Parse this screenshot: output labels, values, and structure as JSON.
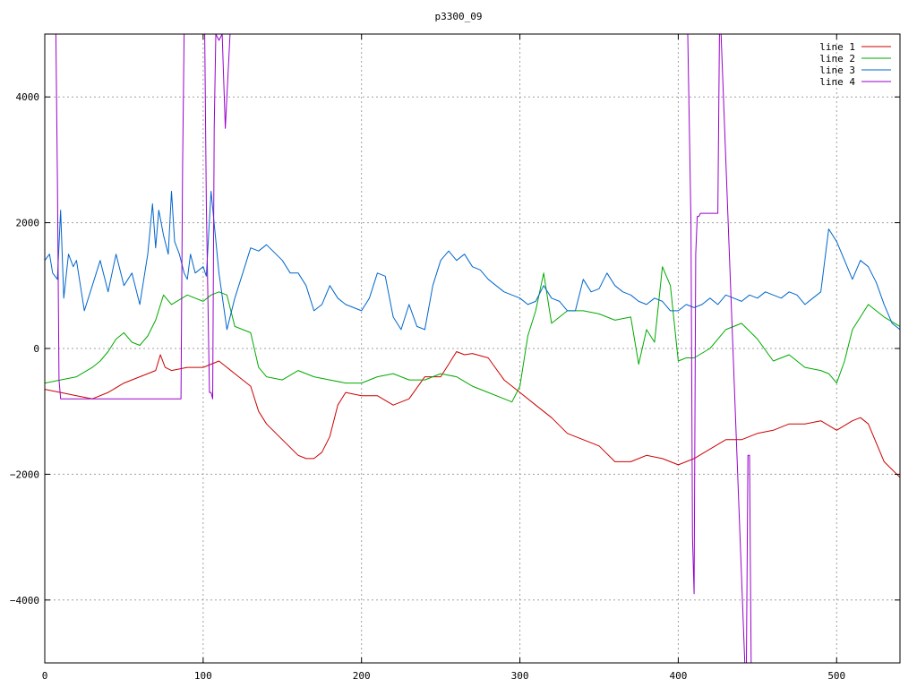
{
  "chart_data": {
    "type": "line",
    "title": "p3300_09",
    "xlabel": "",
    "ylabel": "",
    "xlim": [
      0,
      540
    ],
    "ylim": [
      -5000,
      5000
    ],
    "x_ticks": [
      0,
      100,
      200,
      300,
      400,
      500
    ],
    "y_ticks": [
      -4000,
      -2000,
      0,
      2000,
      4000
    ],
    "x_tick_labels": [
      "0",
      "100",
      "200",
      "300",
      "400",
      "500"
    ],
    "y_tick_labels": [
      "−4000",
      "−2000",
      "0",
      "2000",
      "4000"
    ],
    "grid": true,
    "legend_position": "top-right",
    "series": [
      {
        "name": "line 1",
        "color": "#cc0000",
        "x": [
          0,
          10,
          20,
          30,
          40,
          50,
          60,
          70,
          73,
          76,
          80,
          90,
          100,
          110,
          120,
          130,
          135,
          140,
          150,
          160,
          165,
          170,
          175,
          180,
          185,
          190,
          200,
          210,
          220,
          230,
          240,
          250,
          255,
          260,
          265,
          270,
          280,
          290,
          300,
          310,
          320,
          330,
          340,
          350,
          360,
          370,
          380,
          390,
          400,
          410,
          420,
          430,
          440,
          450,
          460,
          470,
          480,
          490,
          500,
          510,
          515,
          520,
          530,
          540
        ],
        "y": [
          -650,
          -700,
          -750,
          -800,
          -700,
          -550,
          -450,
          -350,
          -100,
          -300,
          -350,
          -300,
          -300,
          -200,
          -400,
          -600,
          -1000,
          -1200,
          -1450,
          -1700,
          -1750,
          -1750,
          -1650,
          -1400,
          -900,
          -700,
          -750,
          -750,
          -900,
          -800,
          -450,
          -450,
          -250,
          -50,
          -100,
          -80,
          -150,
          -500,
          -700,
          -900,
          -1100,
          -1350,
          -1450,
          -1550,
          -1800,
          -1800,
          -1700,
          -1750,
          -1850,
          -1750,
          -1600,
          -1450,
          -1450,
          -1350,
          -1300,
          -1200,
          -1200,
          -1150,
          -1300,
          -1150,
          -1100,
          -1200,
          -1800,
          -2050
        ]
      },
      {
        "name": "line 2",
        "color": "#00aa00",
        "x": [
          0,
          10,
          20,
          30,
          35,
          40,
          45,
          50,
          55,
          60,
          65,
          70,
          75,
          80,
          90,
          100,
          105,
          110,
          115,
          120,
          125,
          130,
          135,
          140,
          150,
          160,
          170,
          180,
          190,
          200,
          210,
          220,
          230,
          240,
          250,
          260,
          270,
          280,
          290,
          295,
          300,
          305,
          310,
          315,
          320,
          325,
          330,
          340,
          350,
          360,
          370,
          375,
          380,
          385,
          390,
          395,
          400,
          405,
          410,
          420,
          430,
          440,
          450,
          460,
          470,
          480,
          490,
          495,
          500,
          505,
          510,
          515,
          520,
          530,
          540
        ],
        "y": [
          -550,
          -500,
          -450,
          -300,
          -200,
          -50,
          150,
          250,
          100,
          50,
          200,
          450,
          850,
          700,
          850,
          750,
          850,
          900,
          850,
          350,
          300,
          250,
          -300,
          -450,
          -500,
          -350,
          -450,
          -500,
          -550,
          -550,
          -450,
          -400,
          -500,
          -500,
          -400,
          -450,
          -600,
          -700,
          -800,
          -850,
          -600,
          200,
          600,
          1200,
          400,
          500,
          600,
          600,
          550,
          450,
          500,
          -250,
          300,
          100,
          1300,
          1000,
          -200,
          -150,
          -150,
          0,
          300,
          400,
          150,
          -200,
          -100,
          -300,
          -350,
          -400,
          -550,
          -200,
          300,
          500,
          700,
          500,
          350
        ]
      },
      {
        "name": "line 3",
        "color": "#0066cc",
        "x": [
          0,
          3,
          5,
          8,
          10,
          12,
          15,
          18,
          20,
          25,
          30,
          35,
          40,
          45,
          50,
          55,
          60,
          65,
          68,
          70,
          72,
          75,
          78,
          80,
          82,
          85,
          88,
          90,
          92,
          95,
          100,
          102,
          105,
          110,
          115,
          120,
          125,
          130,
          135,
          140,
          150,
          155,
          160,
          165,
          170,
          175,
          180,
          185,
          190,
          195,
          200,
          205,
          210,
          215,
          220,
          225,
          230,
          235,
          240,
          245,
          250,
          255,
          260,
          265,
          270,
          275,
          280,
          285,
          290,
          300,
          305,
          310,
          315,
          320,
          325,
          330,
          335,
          340,
          345,
          350,
          355,
          360,
          365,
          370,
          375,
          380,
          385,
          390,
          395,
          400,
          405,
          410,
          415,
          420,
          425,
          430,
          435,
          440,
          445,
          450,
          455,
          460,
          465,
          470,
          475,
          480,
          485,
          490,
          495,
          500,
          505,
          510,
          515,
          520,
          525,
          530,
          535,
          540
        ],
        "y": [
          1400,
          1500,
          1200,
          1100,
          2200,
          800,
          1500,
          1300,
          1400,
          600,
          1000,
          1400,
          900,
          1500,
          1000,
          1200,
          700,
          1500,
          2300,
          1600,
          2200,
          1800,
          1500,
          2500,
          1700,
          1500,
          1200,
          1100,
          1500,
          1200,
          1300,
          1150,
          2500,
          1200,
          300,
          800,
          1200,
          1600,
          1550,
          1650,
          1400,
          1200,
          1200,
          1000,
          600,
          700,
          1000,
          800,
          700,
          650,
          600,
          800,
          1200,
          1150,
          500,
          300,
          700,
          350,
          300,
          1000,
          1400,
          1550,
          1400,
          1500,
          1300,
          1250,
          1100,
          1000,
          900,
          800,
          700,
          750,
          1000,
          800,
          750,
          600,
          600,
          1100,
          900,
          950,
          1200,
          1000,
          900,
          850,
          750,
          700,
          800,
          750,
          600,
          600,
          700,
          650,
          700,
          800,
          700,
          850,
          800,
          750,
          850,
          800,
          900,
          850,
          800,
          900,
          850,
          700,
          800,
          900,
          1900,
          1700,
          1400,
          1100,
          1400,
          1300,
          1050,
          700,
          400,
          300
        ]
      },
      {
        "name": "line 4",
        "color": "#9900cc",
        "x": [
          0,
          7,
          8,
          9,
          10,
          86,
          87,
          88,
          100,
          101,
          102,
          104,
          105,
          106,
          107,
          108,
          110,
          112,
          114,
          117,
          404,
          406,
          408,
          409,
          410,
          411,
          412,
          413,
          414,
          415,
          416,
          424,
          425,
          426,
          427,
          442,
          443,
          444,
          445,
          446
        ],
        "y": [
          5000,
          5000,
          2700,
          -500,
          -800,
          -800,
          2900,
          5000,
          5000,
          5000,
          2300,
          -700,
          -700,
          -800,
          3500,
          5000,
          4900,
          5000,
          3500,
          5000,
          5000,
          5000,
          2000,
          -3000,
          -3900,
          1500,
          2100,
          2100,
          2150,
          2150,
          2150,
          2150,
          2150,
          5000,
          5000,
          -5000,
          -5000,
          -1700,
          -1700,
          -5000
        ]
      }
    ]
  }
}
